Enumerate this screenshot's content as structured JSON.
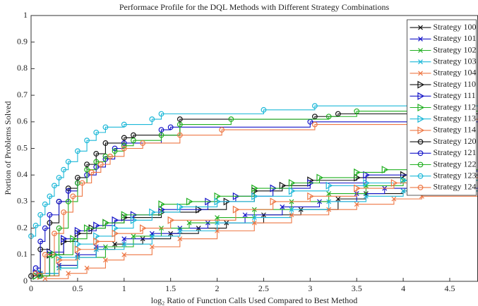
{
  "chart_data": {
    "type": "line",
    "step": true,
    "title": "Performace Profile for the DQL Methods with Different Strategy Combinations",
    "xlabel": "log₂ Ratio of Function Calls Used Compared to Best Method",
    "ylabel": "Portion of Problems Solved",
    "xlim": [
      0,
      4.8
    ],
    "ylim": [
      0,
      1
    ],
    "xticks": [
      0,
      0.5,
      1,
      1.5,
      2,
      2.5,
      3,
      3.5,
      4,
      4.5
    ],
    "yticks": [
      0,
      0.1,
      0.2,
      0.3,
      0.4,
      0.5,
      0.6,
      0.7,
      0.8,
      0.9,
      1
    ],
    "grid": false,
    "legend": "upper right",
    "series": [
      {
        "name": "Strategy 100",
        "color": "#111111",
        "marker": "x",
        "x": [
          0.1,
          0.3,
          0.5,
          0.7,
          0.9,
          1.2,
          1.5,
          1.8,
          2.1,
          2.5,
          2.9,
          3.3,
          3.6,
          4.0
        ],
        "values": [
          0.02,
          0.06,
          0.09,
          0.12,
          0.14,
          0.16,
          0.18,
          0.2,
          0.22,
          0.25,
          0.27,
          0.31,
          0.33,
          0.34
        ]
      },
      {
        "name": "Strategy 101",
        "color": "#1515c8",
        "marker": "x",
        "x": [
          0.1,
          0.3,
          0.5,
          0.7,
          1.0,
          1.3,
          1.6,
          1.9,
          2.3,
          2.7,
          3.1,
          3.5,
          3.8
        ],
        "values": [
          0.03,
          0.06,
          0.1,
          0.13,
          0.16,
          0.18,
          0.2,
          0.22,
          0.25,
          0.28,
          0.3,
          0.33,
          0.35
        ]
      },
      {
        "name": "Strategy 102",
        "color": "#22b022",
        "marker": "x",
        "x": [
          0.1,
          0.3,
          0.5,
          0.8,
          1.1,
          1.4,
          1.7,
          2.0,
          2.4,
          2.8,
          3.2,
          3.6,
          4.0
        ],
        "values": [
          0.02,
          0.05,
          0.09,
          0.13,
          0.17,
          0.2,
          0.22,
          0.24,
          0.27,
          0.3,
          0.33,
          0.36,
          0.38
        ]
      },
      {
        "name": "Strategy 103",
        "color": "#1cb8d8",
        "marker": "x",
        "x": [
          0.1,
          0.3,
          0.5,
          0.7,
          1.0,
          1.3,
          1.6,
          2.0,
          2.4,
          2.8,
          3.2,
          3.6,
          4.0
        ],
        "values": [
          0.02,
          0.05,
          0.09,
          0.12,
          0.14,
          0.17,
          0.19,
          0.22,
          0.24,
          0.27,
          0.3,
          0.32,
          0.34
        ]
      },
      {
        "name": "Strategy 104",
        "color": "#ee7744",
        "marker": "x",
        "x": [
          0.15,
          0.4,
          0.6,
          0.8,
          1.0,
          1.3,
          1.6,
          2.0,
          2.4,
          2.8,
          3.2,
          3.5,
          3.9,
          4.2
        ],
        "values": [
          0.01,
          0.03,
          0.05,
          0.08,
          0.1,
          0.13,
          0.16,
          0.19,
          0.22,
          0.25,
          0.27,
          0.29,
          0.31,
          0.32
        ]
      },
      {
        "name": "Strategy 110",
        "color": "#111111",
        "marker": "triangle",
        "x": [
          0.05,
          0.2,
          0.35,
          0.5,
          0.65,
          0.8,
          1.0,
          1.4,
          1.8,
          2.1,
          2.4,
          2.7,
          3.0,
          3.5,
          4.0
        ],
        "values": [
          0.02,
          0.1,
          0.15,
          0.18,
          0.2,
          0.22,
          0.24,
          0.26,
          0.27,
          0.3,
          0.34,
          0.36,
          0.38,
          0.39,
          0.4
        ]
      },
      {
        "name": "Strategy 111",
        "color": "#1515c8",
        "marker": "triangle",
        "x": [
          0.05,
          0.2,
          0.35,
          0.5,
          0.7,
          0.9,
          1.1,
          1.4,
          1.9,
          2.2,
          2.6,
          3.0,
          3.6,
          4.15
        ],
        "values": [
          0.03,
          0.11,
          0.16,
          0.19,
          0.21,
          0.23,
          0.25,
          0.27,
          0.3,
          0.32,
          0.35,
          0.37,
          0.4,
          0.415
        ]
      },
      {
        "name": "Strategy 112",
        "color": "#22b022",
        "marker": "triangle",
        "x": [
          0.05,
          0.25,
          0.45,
          0.6,
          0.8,
          1.0,
          1.4,
          1.7,
          2.0,
          2.4,
          2.8,
          3.1,
          3.5,
          3.8
        ],
        "values": [
          0.02,
          0.1,
          0.16,
          0.2,
          0.22,
          0.25,
          0.29,
          0.3,
          0.32,
          0.35,
          0.37,
          0.39,
          0.41,
          0.42
        ]
      },
      {
        "name": "Strategy 113",
        "color": "#1cb8d8",
        "marker": "triangle",
        "x": [
          0.1,
          0.3,
          0.5,
          0.7,
          0.9,
          1.1,
          1.3,
          1.6,
          2.0,
          2.4,
          2.8,
          3.2,
          3.6,
          4.0
        ],
        "values": [
          0.03,
          0.09,
          0.14,
          0.17,
          0.2,
          0.23,
          0.26,
          0.28,
          0.3,
          0.32,
          0.34,
          0.36,
          0.37,
          0.38
        ]
      },
      {
        "name": "Strategy 114",
        "color": "#ee7744",
        "marker": "triangle",
        "x": [
          0.1,
          0.3,
          0.5,
          0.7,
          0.9,
          1.2,
          1.5,
          2.2,
          2.6,
          3.0,
          3.5,
          3.9,
          4.2
        ],
        "values": [
          0.02,
          0.08,
          0.12,
          0.15,
          0.18,
          0.2,
          0.23,
          0.27,
          0.3,
          0.32,
          0.35,
          0.37,
          0.39
        ]
      },
      {
        "name": "Strategy 120",
        "color": "#111111",
        "marker": "circle",
        "x": [
          0,
          0.1,
          0.2,
          0.3,
          0.4,
          0.5,
          0.6,
          0.7,
          0.8,
          1.0,
          1.1,
          1.6,
          3.05,
          3.3
        ],
        "values": [
          0.02,
          0.12,
          0.22,
          0.3,
          0.35,
          0.39,
          0.44,
          0.48,
          0.52,
          0.54,
          0.55,
          0.61,
          0.62,
          0.63
        ]
      },
      {
        "name": "Strategy 121",
        "color": "#1515c8",
        "marker": "circle",
        "x": [
          0.05,
          0.1,
          0.15,
          0.2,
          0.3,
          0.4,
          0.5,
          0.6,
          0.7,
          0.8,
          0.9,
          1.0,
          1.4,
          1.5,
          3.0
        ],
        "values": [
          0.05,
          0.15,
          0.2,
          0.25,
          0.3,
          0.34,
          0.37,
          0.4,
          0.43,
          0.46,
          0.5,
          0.52,
          0.57,
          0.58,
          0.6
        ]
      },
      {
        "name": "Strategy 122",
        "color": "#22b022",
        "marker": "circle",
        "x": [
          0.1,
          0.2,
          0.3,
          0.4,
          0.5,
          0.6,
          0.7,
          0.8,
          0.9,
          1.0,
          1.1,
          1.4,
          1.6,
          2.15,
          3.2,
          3.5
        ],
        "values": [
          0.02,
          0.1,
          0.2,
          0.3,
          0.37,
          0.42,
          0.45,
          0.47,
          0.49,
          0.51,
          0.53,
          0.55,
          0.59,
          0.61,
          0.62,
          0.64
        ]
      },
      {
        "name": "Strategy 123",
        "color": "#1cb8d8",
        "marker": "circle",
        "x": [
          0,
          0.05,
          0.1,
          0.15,
          0.2,
          0.25,
          0.3,
          0.35,
          0.4,
          0.5,
          0.6,
          0.7,
          0.8,
          1.0,
          1.3,
          1.4,
          2.5,
          3.05
        ],
        "values": [
          0.17,
          0.21,
          0.25,
          0.29,
          0.32,
          0.36,
          0.39,
          0.42,
          0.45,
          0.49,
          0.53,
          0.56,
          0.58,
          0.59,
          0.61,
          0.63,
          0.645,
          0.66
        ]
      },
      {
        "name": "Strategy 124",
        "color": "#ee7744",
        "marker": "circle",
        "x": [
          0.05,
          0.15,
          0.25,
          0.35,
          0.45,
          0.55,
          0.65,
          0.75,
          0.85,
          1.0,
          1.2,
          1.6,
          2.05,
          3.05,
          4.2
        ],
        "values": [
          0.03,
          0.1,
          0.18,
          0.26,
          0.32,
          0.37,
          0.41,
          0.44,
          0.47,
          0.5,
          0.52,
          0.55,
          0.57,
          0.59,
          0.61
        ]
      }
    ]
  }
}
